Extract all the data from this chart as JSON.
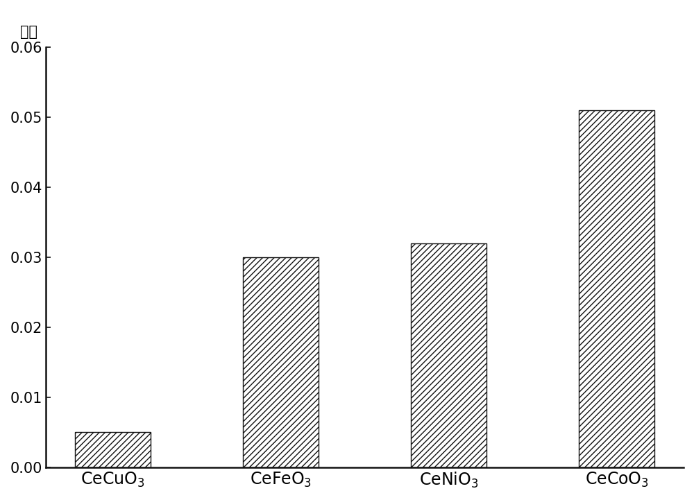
{
  "categories": [
    "CeCuO$_3$",
    "CeFeO$_3$",
    "CeNiO$_3$",
    "CeCoO$_3$"
  ],
  "values": [
    0.005,
    0.03,
    0.032,
    0.051
  ],
  "ylabel_text": "产率",
  "ylim": [
    0.0,
    0.06
  ],
  "yticks": [
    0.0,
    0.01,
    0.02,
    0.03,
    0.04,
    0.05,
    0.06
  ],
  "bar_color": "white",
  "bar_edgecolor": "#111111",
  "hatch_pattern": "////",
  "bar_width": 0.45,
  "figsize": [
    10.0,
    7.21
  ],
  "dpi": 100,
  "background_color": "#ffffff",
  "spine_color": "#111111",
  "tick_color": "#111111",
  "label_fontsize": 15,
  "tick_fontsize": 15,
  "xtick_fontsize": 17
}
